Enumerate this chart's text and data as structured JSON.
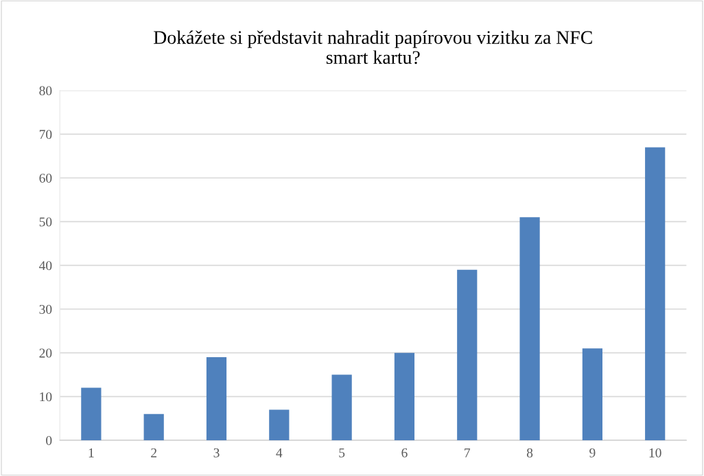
{
  "chart_data": {
    "type": "bar",
    "title": "Dokážete si představit nahradit papírovou vizitku za NFC\nsmart kartu?",
    "categories": [
      "1",
      "2",
      "3",
      "4",
      "5",
      "6",
      "7",
      "8",
      "9",
      "10"
    ],
    "values": [
      12,
      6,
      19,
      7,
      15,
      20,
      39,
      51,
      21,
      67
    ],
    "color": "#4f81bd",
    "ylim": [
      0,
      80
    ],
    "yticks": [
      0,
      10,
      20,
      30,
      40,
      50,
      60,
      70,
      80
    ],
    "grid": "y"
  }
}
